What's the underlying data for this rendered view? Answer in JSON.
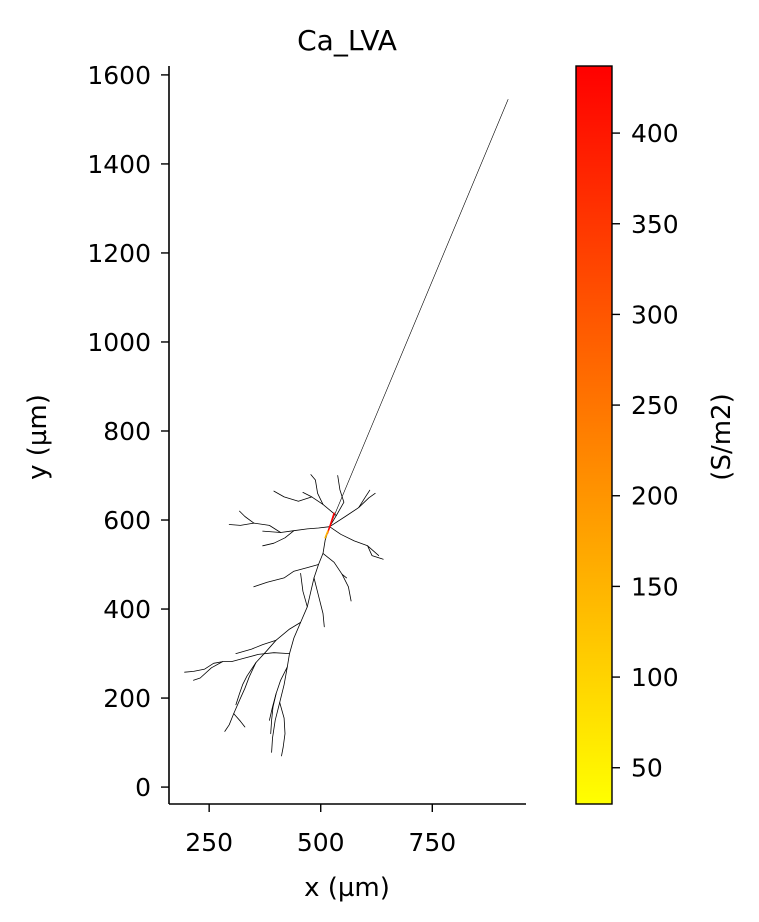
{
  "chart_data": {
    "type": "line",
    "title": "Ca_LVA",
    "xlabel": "x (µm)",
    "ylabel": "y (µm)",
    "xlim": [
      160,
      960
    ],
    "ylim": [
      -38,
      1620
    ],
    "xticks": [
      250,
      500,
      750
    ],
    "yticks": [
      0,
      200,
      400,
      600,
      800,
      1000,
      1200,
      1400,
      1600
    ],
    "grid": false,
    "spines": "left-bottom",
    "line_color": "#000000",
    "series": [
      {
        "points": [
          [
            520,
            585
          ],
          [
            920,
            1545
          ]
        ]
      },
      {
        "points": [
          [
            520,
            585
          ],
          [
            535,
            610
          ],
          [
            552,
            640
          ],
          [
            543,
            668
          ],
          [
            538,
            700
          ]
        ]
      },
      {
        "points": [
          [
            535,
            610
          ],
          [
            505,
            635
          ],
          [
            480,
            652
          ],
          [
            460,
            662
          ]
        ]
      },
      {
        "points": [
          [
            505,
            635
          ],
          [
            493,
            660
          ],
          [
            488,
            690
          ],
          [
            478,
            702
          ]
        ]
      },
      {
        "points": [
          [
            480,
            652
          ],
          [
            450,
            642
          ],
          [
            418,
            652
          ],
          [
            395,
            665
          ]
        ]
      },
      {
        "points": [
          [
            520,
            585
          ],
          [
            555,
            608
          ],
          [
            585,
            628
          ],
          [
            608,
            650
          ],
          [
            622,
            660
          ]
        ]
      },
      {
        "points": [
          [
            585,
            628
          ],
          [
            600,
            652
          ],
          [
            610,
            667
          ]
        ]
      },
      {
        "points": [
          [
            520,
            585
          ],
          [
            545,
            568
          ],
          [
            575,
            553
          ],
          [
            605,
            542
          ],
          [
            630,
            520
          ]
        ]
      },
      {
        "points": [
          [
            605,
            542
          ],
          [
            615,
            520
          ],
          [
            640,
            512
          ]
        ]
      },
      {
        "points": [
          [
            520,
            585
          ],
          [
            495,
            582
          ],
          [
            470,
            580
          ],
          [
            440,
            576
          ],
          [
            410,
            572
          ],
          [
            370,
            575
          ]
        ]
      },
      {
        "points": [
          [
            410,
            572
          ],
          [
            385,
            588
          ],
          [
            350,
            593
          ],
          [
            320,
            588
          ],
          [
            295,
            590
          ]
        ]
      },
      {
        "points": [
          [
            440,
            576
          ],
          [
            420,
            560
          ],
          [
            395,
            548
          ],
          [
            370,
            542
          ]
        ]
      },
      {
        "points": [
          [
            350,
            593
          ],
          [
            330,
            608
          ],
          [
            318,
            620
          ]
        ]
      },
      {
        "points": [
          [
            520,
            585
          ],
          [
            510,
            555
          ],
          [
            505,
            525
          ],
          [
            495,
            500
          ],
          [
            485,
            470
          ]
        ]
      },
      {
        "points": [
          [
            505,
            525
          ],
          [
            530,
            505
          ],
          [
            548,
            478
          ],
          [
            562,
            450
          ],
          [
            568,
            418
          ]
        ]
      },
      {
        "points": [
          [
            548,
            478
          ],
          [
            558,
            470
          ]
        ]
      },
      {
        "points": [
          [
            495,
            500
          ],
          [
            470,
            493
          ],
          [
            440,
            485
          ],
          [
            418,
            470
          ],
          [
            380,
            460
          ],
          [
            350,
            450
          ]
        ]
      },
      {
        "points": [
          [
            485,
            470
          ],
          [
            478,
            440
          ],
          [
            470,
            405
          ],
          [
            455,
            370
          ],
          [
            440,
            335
          ],
          [
            430,
            300
          ],
          [
            425,
            270
          ],
          [
            418,
            230
          ],
          [
            408,
            190
          ],
          [
            398,
            150
          ],
          [
            392,
            110
          ],
          [
            390,
            78
          ]
        ]
      },
      {
        "points": [
          [
            425,
            270
          ],
          [
            410,
            240
          ],
          [
            400,
            210
          ],
          [
            393,
            180
          ],
          [
            390,
            150
          ],
          [
            388,
            120
          ]
        ]
      },
      {
        "points": [
          [
            400,
            210
          ],
          [
            392,
            180
          ],
          [
            385,
            150
          ]
        ]
      },
      {
        "points": [
          [
            485,
            470
          ],
          [
            495,
            430
          ],
          [
            505,
            390
          ],
          [
            508,
            360
          ]
        ]
      },
      {
        "points": [
          [
            408,
            190
          ],
          [
            418,
            155
          ],
          [
            420,
            120
          ],
          [
            416,
            90
          ],
          [
            412,
            70
          ]
        ]
      },
      {
        "points": [
          [
            455,
            370
          ],
          [
            430,
            355
          ],
          [
            400,
            330
          ],
          [
            370,
            320
          ],
          [
            345,
            310
          ],
          [
            310,
            300
          ]
        ]
      },
      {
        "points": [
          [
            400,
            330
          ],
          [
            378,
            305
          ],
          [
            355,
            280
          ],
          [
            335,
            250
          ],
          [
            325,
            230
          ],
          [
            318,
            210
          ],
          [
            310,
            185
          ]
        ]
      },
      {
        "points": [
          [
            430,
            300
          ],
          [
            395,
            302
          ],
          [
            360,
            298
          ],
          [
            330,
            290
          ],
          [
            300,
            282
          ],
          [
            280,
            282
          ],
          [
            260,
            278
          ],
          [
            240,
            265
          ],
          [
            215,
            260
          ],
          [
            195,
            258
          ]
        ]
      },
      {
        "points": [
          [
            280,
            282
          ],
          [
            255,
            268
          ],
          [
            230,
            245
          ],
          [
            215,
            240
          ]
        ]
      },
      {
        "points": [
          [
            355,
            280
          ],
          [
            340,
            248
          ],
          [
            330,
            222
          ],
          [
            318,
            195
          ],
          [
            305,
            165
          ],
          [
            295,
            140
          ],
          [
            285,
            125
          ]
        ]
      },
      {
        "points": [
          [
            305,
            165
          ],
          [
            320,
            148
          ],
          [
            330,
            135
          ]
        ]
      },
      {
        "points": [
          [
            470,
            405
          ],
          [
            460,
            440
          ],
          [
            455,
            480
          ]
        ]
      }
    ],
    "colorbar": {
      "label": "(S/m2)",
      "vmin": 30,
      "vmax": 437,
      "ticks": [
        50,
        100,
        150,
        200,
        250,
        300,
        350,
        400
      ],
      "colormap": "autumn_r",
      "color_low": "#ffff00",
      "color_high": "#ff0000"
    },
    "colored_segments": [
      {
        "points": [
          [
            515,
            570
          ],
          [
            522,
            590
          ],
          [
            530,
            615
          ]
        ],
        "value": 437
      },
      {
        "points": [
          [
            510,
            560
          ],
          [
            516,
            575
          ]
        ],
        "value": 150
      }
    ]
  }
}
